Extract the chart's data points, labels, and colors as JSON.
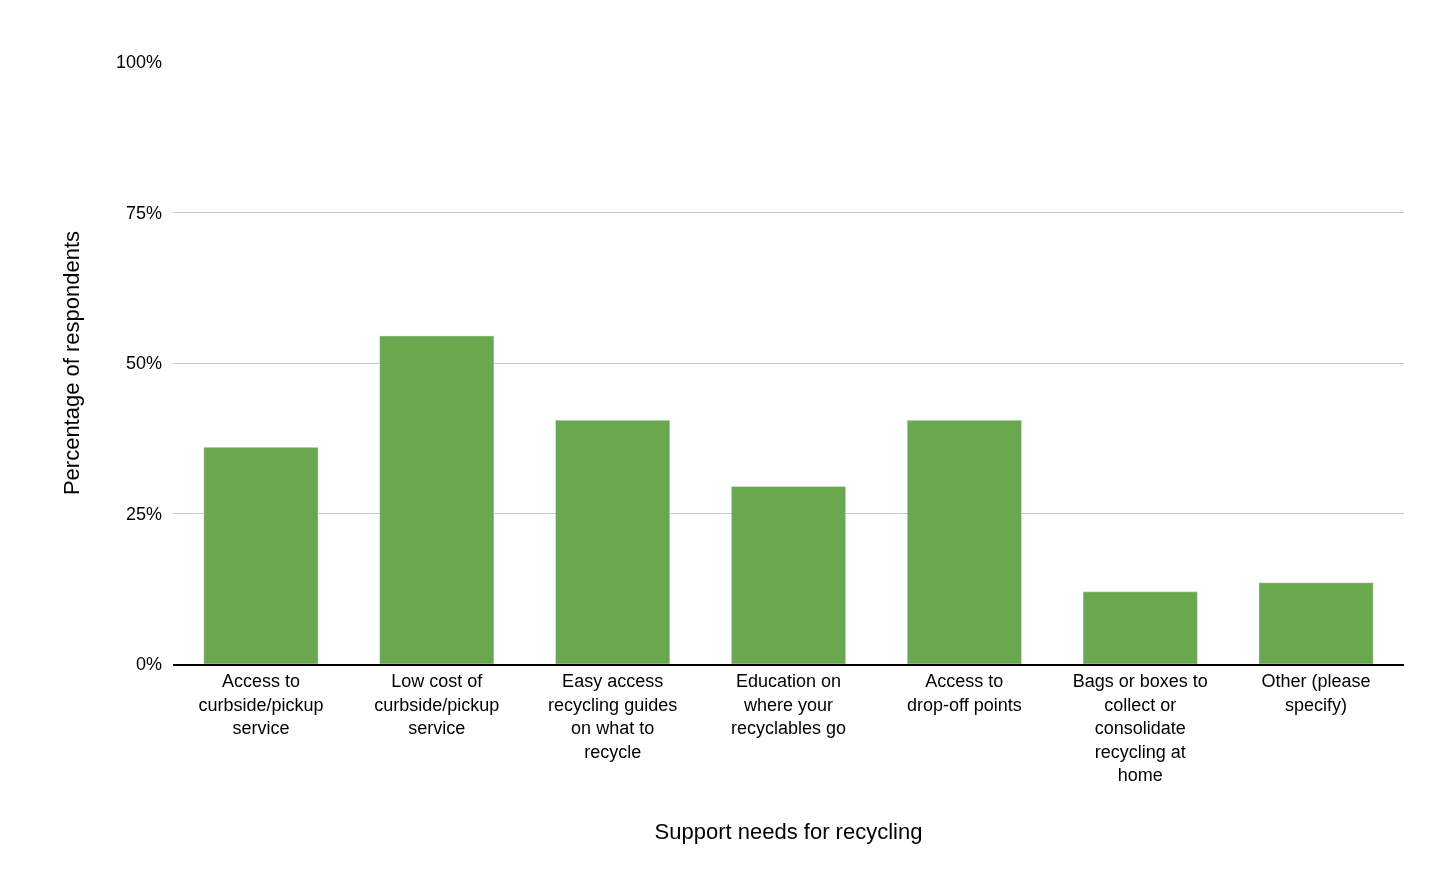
{
  "chart_data": {
    "type": "bar",
    "xlabel": "Support needs for recycling",
    "ylabel": "Percentage of respondents",
    "categories": [
      "Access to curbside/pickup service",
      "Low cost of curbside/pickup service",
      "Easy access recycling guides on what to recycle",
      "Education on where your recyclables go",
      "Access to drop-off points",
      "Bags or boxes to collect or consolidate recycling at home",
      "Other (please specify)"
    ],
    "values": [
      36,
      54.5,
      40.5,
      29.5,
      40.5,
      12,
      13.5
    ],
    "color": "#6aa84f",
    "ylim": [
      0,
      100
    ],
    "yticks": [
      {
        "value": 0,
        "label": "0%"
      },
      {
        "value": 25,
        "label": "25%"
      },
      {
        "value": 50,
        "label": "50%"
      },
      {
        "value": 75,
        "label": "75%"
      },
      {
        "value": 100,
        "label": "100%"
      }
    ],
    "grid": "y",
    "legend": false
  }
}
